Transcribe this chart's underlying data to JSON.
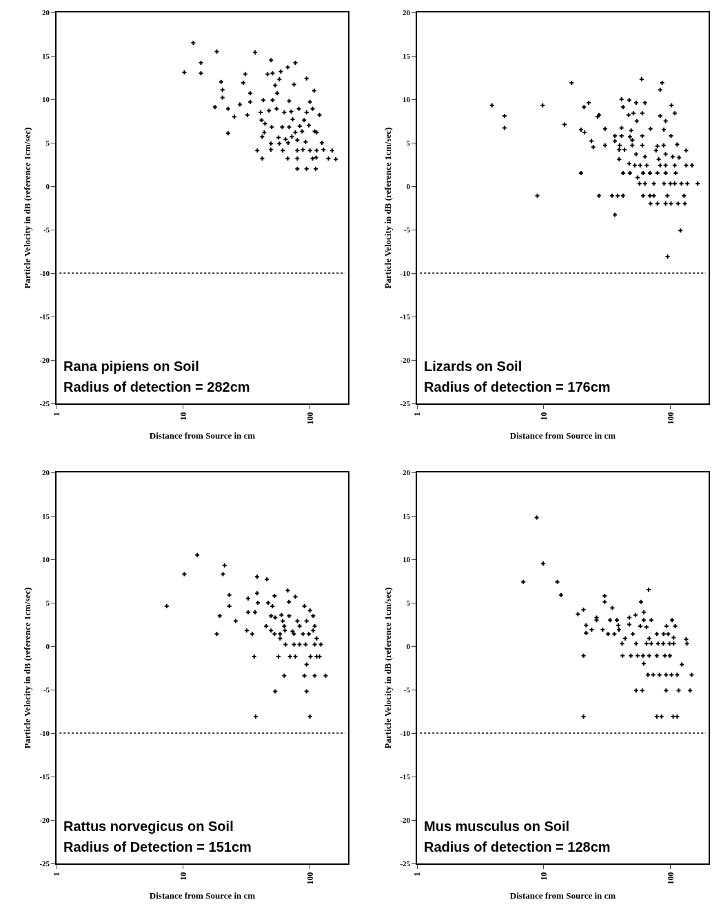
{
  "chart_data": [
    {
      "type": "scatter",
      "xlabel": "Distance from Source in cm",
      "ylabel": "Particle Velocity in dB (reference 1cm/sec)",
      "log": "x",
      "grid": false,
      "marker": "cross",
      "xlim": [
        1,
        200
      ],
      "xticks": [
        1,
        10,
        100
      ],
      "ylim": [
        -25,
        20
      ],
      "yticks": [
        -25,
        -20,
        -15,
        -10,
        -5,
        0,
        5,
        10,
        15,
        20
      ],
      "annotations": [
        "Rana pipiens on Soil",
        "Radius of detection = 282cm"
      ],
      "ref_lines": [
        {
          "axis": "y",
          "value": -10,
          "color": "#000000",
          "line_style": "dotted"
        }
      ],
      "series": [
        {
          "color": "#000000",
          "x": [
            12,
            18.4,
            13.8,
            10.2,
            13.8,
            36.9,
            49.3,
            76.7,
            66.8,
            58.9,
            50.7,
            46.3,
            30.9,
            94,
            57.4,
            29.8,
            19.9,
            20.4,
            74.8,
            53.2,
            108,
            33.8,
            55.2,
            20.4,
            17.8,
            28,
            33.8,
            42.9,
            50.7,
            68.5,
            100,
            22.6,
            32.1,
            25.3,
            40.8,
            47.5,
            54.6,
            62.7,
            71.1,
            81.7,
            94,
            105,
            119,
            41.5,
            44.2,
            49.9,
            60.4,
            73,
            68.5,
            83,
            90,
            98,
            109,
            113,
            43.6,
            22.6,
            76.7,
            86.7,
            42,
            56.5,
            64.2,
            72,
            79.5,
            92.4,
            124,
            49.2,
            57.4,
            67.3,
            38.4,
            49.2,
            60.9,
            79.5,
            88,
            100,
            113,
            128,
            150,
            42,
            66.8,
            79.5,
            105,
            112,
            140,
            160,
            79.5,
            94,
            111
          ],
          "values": [
            16.5,
            15.5,
            14.2,
            13.1,
            13.0,
            15.4,
            14.5,
            14.2,
            13.7,
            13.2,
            13.0,
            12.9,
            12.9,
            12.4,
            12.3,
            11.9,
            12.0,
            11.1,
            11.7,
            11.6,
            11.0,
            10.7,
            10.7,
            10.2,
            9.1,
            9.4,
            9.7,
            9.9,
            9.9,
            9.8,
            9.7,
            8.9,
            8.2,
            8.0,
            8.5,
            8.7,
            8.9,
            8.5,
            8.6,
            8.9,
            8.5,
            8.9,
            8.2,
            7.6,
            7.2,
            6.8,
            6.8,
            7.7,
            6.8,
            6.9,
            7.6,
            7.0,
            6.3,
            6.2,
            6.2,
            6.1,
            6.2,
            6.3,
            5.7,
            5.6,
            5.4,
            5.7,
            5.3,
            5.1,
            5.0,
            4.9,
            4.9,
            5.0,
            4.1,
            4.2,
            4.1,
            4.1,
            4.2,
            4.1,
            4.1,
            4.2,
            4.1,
            3.2,
            3.2,
            3.2,
            3.2,
            3.3,
            3.2,
            3.1,
            2.0,
            2.0,
            2.0
          ]
        }
      ]
    },
    {
      "type": "scatter",
      "xlabel": "Distance from Source in cm",
      "ylabel": "Particle Velocity in dB (reference 1cm/sec)",
      "log": "x",
      "grid": false,
      "marker": "cross",
      "xlim": [
        1,
        200
      ],
      "xticks": [
        1,
        10,
        100
      ],
      "ylim": [
        -25,
        20
      ],
      "yticks": [
        -25,
        -20,
        -15,
        -10,
        -5,
        0,
        5,
        10,
        15,
        20
      ],
      "annotations": [
        "Lizards on Soil",
        "Radius of detection = 176cm"
      ],
      "ref_lines": [
        {
          "axis": "y",
          "value": -10,
          "color": "#000000",
          "line_style": "dotted"
        }
      ],
      "series": [
        {
          "color": "#000000",
          "x": [
            3.9,
            4.9,
            4.9,
            9.8,
            8.9,
            16.6,
            14.6,
            20.8,
            22.6,
            19.7,
            21,
            19.7,
            26.6,
            27.3,
            23.8,
            24.6,
            30.5,
            30.5,
            27.3,
            34.6,
            38.3,
            42.3,
            36.4,
            36.4,
            36.4,
            41.1,
            41.1,
            41.1,
            42.3,
            47.3,
            53.6,
            63,
            59.2,
            46.7,
            51,
            60,
            54.2,
            49,
            60,
            69.6,
            47.9,
            50,
            39.7,
            50,
            60,
            39.4,
            43.4,
            39.4,
            47.3,
            53.6,
            63,
            78.9,
            88.3,
            77,
            80.8,
            91.6,
            104,
            117,
            113,
            133,
            83,
            86,
            83,
            91.6,
            88.7,
            102,
            108,
            101,
            52.3,
            57.7,
            65,
            83,
            91.6,
            108,
            133,
            148,
            42.3,
            47.9,
            60.9,
            68.9,
            78.9,
            91.6,
            110,
            55,
            57,
            63,
            74,
            89,
            100,
            108,
            122,
            136,
            164,
            60.9,
            68.9,
            74,
            94.7,
            128,
            69.6,
            78.9,
            91.6,
            101,
            115,
            130,
            120,
            95
          ],
          "values": [
            9.3,
            8.1,
            6.7,
            9.3,
            -1.1,
            11.9,
            7.1,
            9.1,
            9.6,
            6.5,
            6.2,
            1.5,
            8.0,
            8.2,
            5.2,
            4.5,
            6.6,
            4.7,
            -1.1,
            -1.1,
            -1.1,
            -1.1,
            -3.3,
            5.8,
            5.2,
            5.8,
            6.7,
            10.0,
            9.1,
            9.9,
            9.6,
            9.6,
            12.3,
            8.2,
            8.4,
            8.4,
            7.5,
            6.4,
            5.8,
            6.6,
            5.7,
            5.3,
            4.7,
            4.7,
            4.7,
            4.2,
            4.2,
            3.1,
            2.6,
            3.7,
            3.4,
            4.6,
            4.7,
            4.1,
            3.1,
            3.7,
            3.4,
            3.3,
            4.8,
            4.1,
            11.1,
            11.9,
            8.1,
            7.5,
            6.5,
            9.3,
            8.4,
            5.8,
            2.4,
            2.4,
            2.4,
            2.4,
            2.4,
            2.4,
            2.4,
            2.4,
            1.5,
            1.5,
            1.5,
            1.5,
            1.5,
            1.5,
            1.5,
            1.0,
            0.3,
            0.3,
            0.3,
            0.3,
            0.3,
            0.3,
            0.3,
            0.3,
            0.3,
            -1.1,
            -1.1,
            -1.1,
            -1.1,
            -1.1,
            -2.0,
            -2.0,
            -2.0,
            -2.0,
            -2.0,
            -2.0,
            -5.1,
            -8.1
          ]
        }
      ]
    },
    {
      "type": "scatter",
      "xlabel": "Distance from Source in cm",
      "ylabel": "Particle Velocity in dB (reference 1cm/sec)",
      "log": "x",
      "grid": false,
      "marker": "cross",
      "xlim": [
        1,
        200
      ],
      "xticks": [
        1,
        10,
        100
      ],
      "ylim": [
        -25,
        20
      ],
      "yticks": [
        -25,
        -20,
        -15,
        -10,
        -5,
        0,
        5,
        10,
        15,
        20
      ],
      "annotations": [
        "Rattus norvegicus on Soil",
        "Radius of Detection = 151cm"
      ],
      "ref_lines": [
        {
          "axis": "y",
          "value": -10,
          "color": "#000000",
          "line_style": "dotted"
        }
      ],
      "series": [
        {
          "color": "#000000",
          "x": [
            7.4,
            10.2,
            12.9,
            21.2,
            20.6,
            23.1,
            23.1,
            19.4,
            25.9,
            18.4,
            38.3,
            45.7,
            38.3,
            32.5,
            38.8,
            46.9,
            52.6,
            66.8,
            76.7,
            68.2,
            50.6,
            32.5,
            36.9,
            49.3,
            53.2,
            59.6,
            68.5,
            90.4,
            100,
            106,
            79.6,
            94,
            61,
            45.2,
            62.7,
            82.8,
            109,
            31.7,
            35.1,
            49.3,
            52.6,
            58.1,
            63.5,
            72.9,
            74.8,
            88.2,
            98,
            106,
            58.1,
            113,
            64.2,
            74.8,
            82.8,
            92.4,
            109,
            122,
            36.3,
            56.5,
            69.6,
            76.7,
            101,
            113,
            119,
            94,
            62.7,
            90.4,
            109,
            133,
            53.2,
            94,
            37.3,
            100
          ],
          "values": [
            4.6,
            8.3,
            10.5,
            9.3,
            8.3,
            5.9,
            4.6,
            3.5,
            2.9,
            1.4,
            8.0,
            7.7,
            6.1,
            5.5,
            5.0,
            5.0,
            5.8,
            6.4,
            5.7,
            5.1,
            4.6,
            3.9,
            3.9,
            3.5,
            3.3,
            3.6,
            3.5,
            4.6,
            4.1,
            3.5,
            2.9,
            2.9,
            2.9,
            2.3,
            2.3,
            2.3,
            2.3,
            1.8,
            1.4,
            1.8,
            1.4,
            1.4,
            1.8,
            1.7,
            1.4,
            1.4,
            1.4,
            1.8,
            0.9,
            0.9,
            0.2,
            0.2,
            0.2,
            0.2,
            0.2,
            0.2,
            -1.2,
            -1.2,
            -1.2,
            -1.2,
            -1.2,
            -1.2,
            -1.2,
            -2.1,
            -3.4,
            -3.4,
            -3.4,
            -3.4,
            -5.2,
            -5.2,
            -8.1,
            -8.1
          ]
        }
      ]
    },
    {
      "type": "scatter",
      "xlabel": "Distance from Source in cm",
      "ylabel": "Particle Velocity in dB (reference 1cm/sec)",
      "log": "x",
      "grid": false,
      "marker": "cross",
      "xlim": [
        1,
        200
      ],
      "xticks": [
        1,
        10,
        100
      ],
      "ylim": [
        -25,
        20
      ],
      "yticks": [
        -25,
        -20,
        -15,
        -10,
        -5,
        0,
        5,
        10,
        15,
        20
      ],
      "annotations": [
        "Mus musculus on Soil",
        "Radius of detection = 128cm"
      ],
      "ref_lines": [
        {
          "axis": "y",
          "value": -10,
          "color": "#000000",
          "line_style": "dotted"
        }
      ],
      "series": [
        {
          "color": "#000000",
          "x": [
            8.8,
            9.9,
            6.9,
            12.8,
            13.7,
            20.6,
            18.6,
            21.6,
            21.6,
            23.9,
            20.6,
            20.6,
            30.3,
            30.3,
            34.8,
            26.1,
            26.1,
            29.2,
            32.2,
            33.4,
            37.8,
            36.1,
            38.8,
            39.2,
            47.4,
            53,
            47.4,
            50.4,
            58.6,
            67.2,
            61.5,
            61.5,
            70.6,
            57.8,
            64.7,
            44,
            68,
            78,
            88.3,
            96,
            106,
            103,
            93,
            109,
            133,
            135,
            41.5,
            53.6,
            64.7,
            70.6,
            79.9,
            87.8,
            98.4,
            106,
            41.9,
            48.7,
            55,
            60.7,
            68,
            78,
            90.4,
            99,
            61.5,
            123,
            66.4,
            73.1,
            81.9,
            92.4,
            102,
            113,
            147,
            53.6,
            60,
            92.4,
            116,
            143,
            78,
            85,
            105,
            113
          ],
          "values": [
            14.8,
            9.5,
            7.4,
            7.4,
            5.9,
            4.2,
            3.7,
            2.4,
            1.5,
            1.9,
            -1.1,
            -8.1,
            5.8,
            5.1,
            4.4,
            3.3,
            3.0,
            1.9,
            1.4,
            3.0,
            3.0,
            1.4,
            2.4,
            1.9,
            3.3,
            3.6,
            2.5,
            1.4,
            5.1,
            6.5,
            3.9,
            3.0,
            3.0,
            2.3,
            2.2,
            0.9,
            0.9,
            1.4,
            1.4,
            1.4,
            1.0,
            3.0,
            2.3,
            2.3,
            0.8,
            0.3,
            0.3,
            0.3,
            0.3,
            0.3,
            0.3,
            0.3,
            0.3,
            0.3,
            -1.1,
            -1.1,
            -1.1,
            -1.1,
            -1.1,
            -1.1,
            -1.1,
            -1.1,
            -2.0,
            -2.1,
            -3.3,
            -3.3,
            -3.3,
            -3.3,
            -3.3,
            -3.3,
            -3.3,
            -5.1,
            -5.1,
            -5.1,
            -5.1,
            -5.1,
            -8.1,
            -8.1,
            -8.1,
            -8.1
          ]
        }
      ]
    }
  ]
}
